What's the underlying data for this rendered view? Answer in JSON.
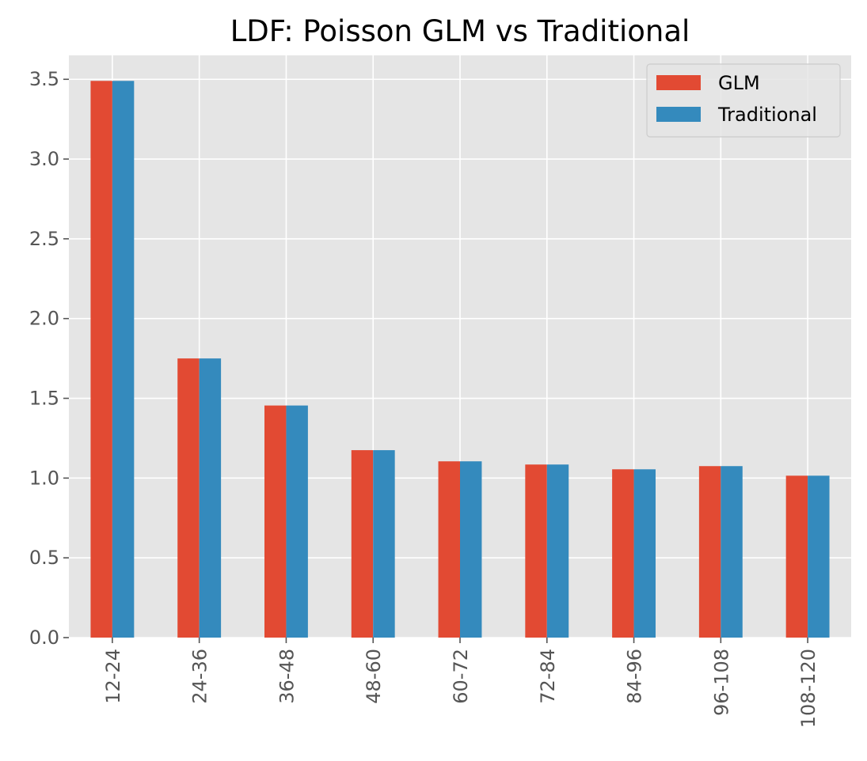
{
  "colors": {
    "background": "#ffffff",
    "plot_background": "#e5e5e5",
    "grid": "#ffffff",
    "tick_text": "#555555",
    "title_text": "#000000"
  },
  "chart_data": {
    "type": "bar",
    "title": "LDF: Poisson GLM vs Traditional",
    "xlabel": "",
    "ylabel": "",
    "categories": [
      "12-24",
      "24-36",
      "36-48",
      "48-60",
      "60-72",
      "72-84",
      "84-96",
      "96-108",
      "108-120"
    ],
    "series": [
      {
        "name": "GLM",
        "color": "#e24a33",
        "values": [
          3.49,
          1.75,
          1.455,
          1.175,
          1.105,
          1.085,
          1.055,
          1.075,
          1.015
        ]
      },
      {
        "name": "Traditional",
        "color": "#348abd",
        "values": [
          3.49,
          1.75,
          1.455,
          1.175,
          1.105,
          1.085,
          1.055,
          1.075,
          1.015
        ]
      }
    ],
    "ylim": [
      0,
      3.65
    ],
    "yticks": [
      "0.0",
      "0.5",
      "1.0",
      "1.5",
      "2.0",
      "2.5",
      "3.0",
      "3.5"
    ],
    "grid": true,
    "legend_position": "top-right"
  }
}
